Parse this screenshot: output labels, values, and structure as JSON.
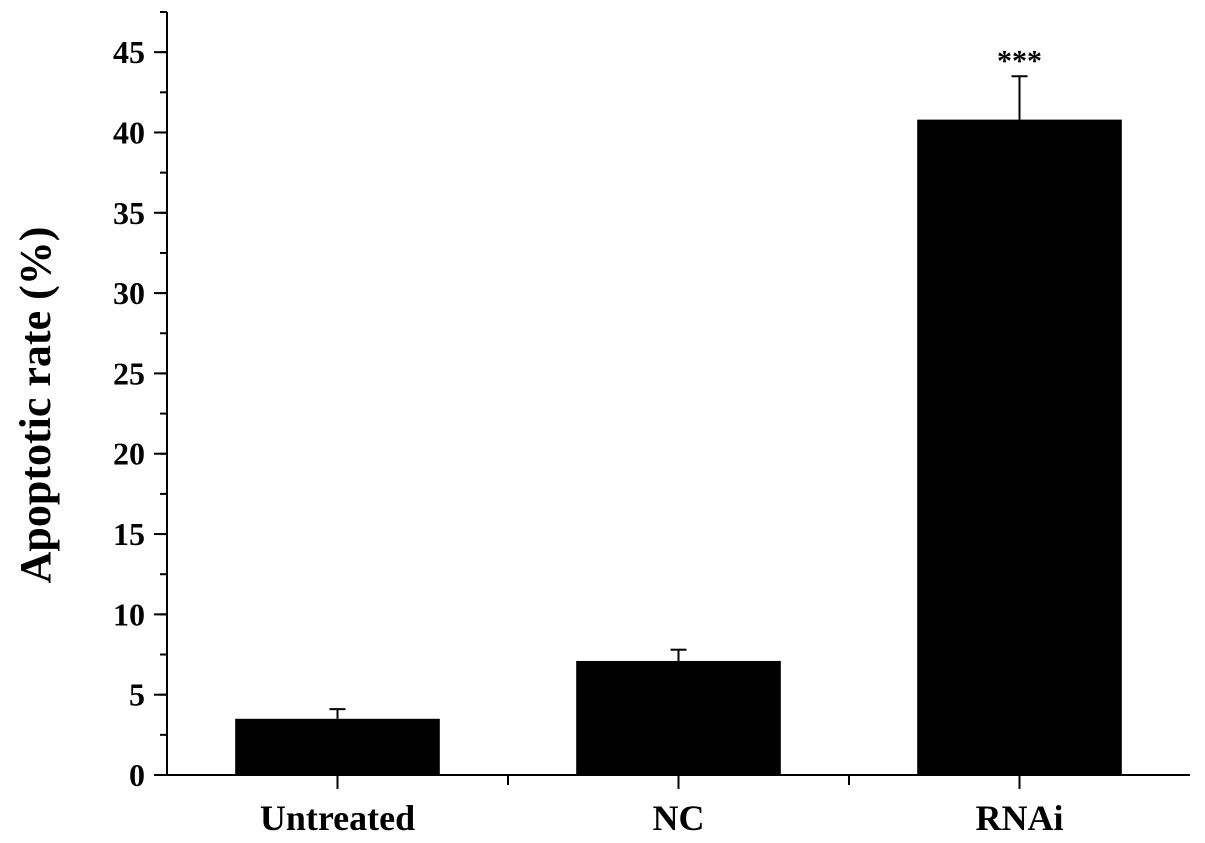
{
  "chart_data": {
    "type": "bar",
    "categories": [
      "Untreated",
      "NC",
      "RNAi"
    ],
    "values": [
      3.5,
      7.1,
      40.8
    ],
    "errors": [
      0.6,
      0.7,
      2.7
    ],
    "annotations": [
      "",
      "",
      "***"
    ],
    "ylabel": "Apoptotic rate (%)",
    "xlabel": "",
    "ylim": [
      0,
      47.5
    ],
    "yticks": [
      0,
      5,
      10,
      15,
      20,
      25,
      30,
      35,
      40,
      45
    ],
    "minor_ytick_step": 2.5,
    "grid": false,
    "legend": "none",
    "bar_color": "#000000"
  }
}
